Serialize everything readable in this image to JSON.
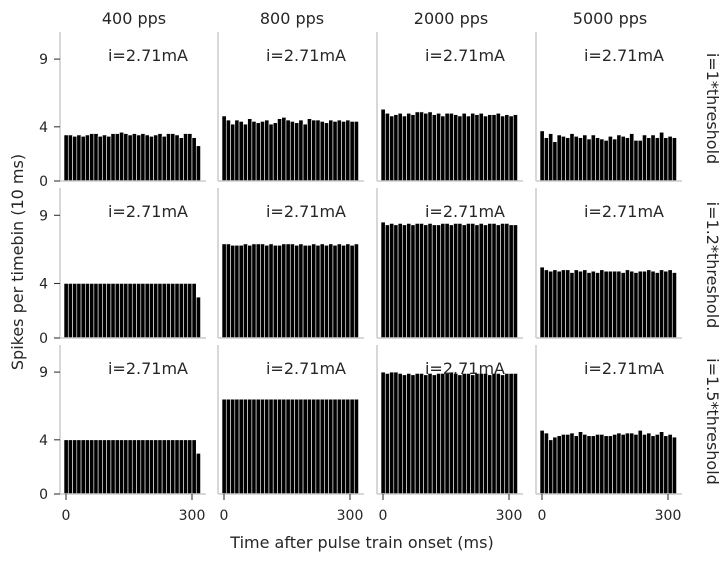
{
  "chart_data": {
    "type": "bar",
    "layout": "3x4 small-multiples grid",
    "xlabel": "Time after pulse train onset (ms)",
    "ylabel": "Spikes per timebin (10 ms)",
    "column_titles": [
      "400 pps",
      "800 pps",
      "2000 pps",
      "5000 pps"
    ],
    "row_titles": [
      "i=1*threshold",
      "i=1.2*threshold",
      "i=1.5*threshold"
    ],
    "annotation": "i=2.71mA",
    "xlim": [
      0,
      300
    ],
    "ylim": [
      0,
      11
    ],
    "xticks": [
      "0",
      "300"
    ],
    "yticks": [
      "0",
      "4",
      "9"
    ],
    "bin_width_ms": 10,
    "bar_color": "#000000",
    "grid": false,
    "panels": [
      [
        {
          "values": [
            3.4,
            3.4,
            3.3,
            3.4,
            3.3,
            3.4,
            3.5,
            3.5,
            3.3,
            3.4,
            3.3,
            3.5,
            3.5,
            3.6,
            3.5,
            3.4,
            3.5,
            3.4,
            3.5,
            3.4,
            3.3,
            3.4,
            3.5,
            3.3,
            3.5,
            3.5,
            3.4,
            3.2,
            3.5,
            3.5,
            3.2,
            2.6
          ]
        },
        {
          "values": [
            4.8,
            4.5,
            4.2,
            4.5,
            4.4,
            4.2,
            4.6,
            4.4,
            4.3,
            4.4,
            4.5,
            4.2,
            4.3,
            4.6,
            4.7,
            4.5,
            4.4,
            4.3,
            4.5,
            4.2,
            4.6,
            4.5,
            4.5,
            4.4,
            4.3,
            4.5,
            4.4,
            4.5,
            4.4,
            4.5,
            4.4,
            4.4
          ]
        },
        {
          "values": [
            5.3,
            5.0,
            4.8,
            4.9,
            5.0,
            4.8,
            5.0,
            4.9,
            5.1,
            5.1,
            5.0,
            5.1,
            4.9,
            5.0,
            4.8,
            5.0,
            5.0,
            4.9,
            4.8,
            5.0,
            4.8,
            5.0,
            4.9,
            5.0,
            4.8,
            4.9,
            4.9,
            5.0,
            4.8,
            4.9,
            4.8,
            4.9
          ]
        },
        {
          "values": [
            3.7,
            3.2,
            3.5,
            2.9,
            3.4,
            3.3,
            3.2,
            3.5,
            3.3,
            3.2,
            3.4,
            3.1,
            3.4,
            3.2,
            3.1,
            3.0,
            3.3,
            3.1,
            3.4,
            3.3,
            3.2,
            3.5,
            3.0,
            3.0,
            3.4,
            3.2,
            3.4,
            3.2,
            3.6,
            3.2,
            3.3,
            3.2
          ]
        }
      ],
      [
        {
          "values": [
            4.0,
            4.0,
            4.0,
            4.0,
            4.0,
            4.0,
            4.0,
            4.0,
            4.0,
            4.0,
            4.0,
            4.0,
            4.0,
            4.0,
            4.0,
            4.0,
            4.0,
            4.0,
            4.0,
            4.0,
            4.0,
            4.0,
            4.0,
            4.0,
            4.0,
            4.0,
            4.0,
            4.0,
            4.0,
            4.0,
            4.0,
            3.0
          ]
        },
        {
          "values": [
            6.9,
            6.9,
            6.8,
            6.8,
            6.8,
            6.9,
            6.8,
            6.9,
            6.9,
            6.9,
            6.8,
            6.9,
            6.8,
            6.8,
            6.9,
            6.9,
            6.9,
            6.8,
            6.9,
            6.8,
            6.8,
            6.9,
            6.8,
            6.9,
            6.8,
            6.9,
            6.8,
            6.9,
            6.8,
            6.9,
            6.8,
            6.9
          ]
        },
        {
          "values": [
            8.5,
            8.3,
            8.4,
            8.3,
            8.4,
            8.3,
            8.4,
            8.3,
            8.4,
            8.4,
            8.3,
            8.4,
            8.3,
            8.3,
            8.4,
            8.4,
            8.3,
            8.4,
            8.4,
            8.3,
            8.4,
            8.4,
            8.3,
            8.4,
            8.3,
            8.4,
            8.4,
            8.3,
            8.4,
            8.4,
            8.3,
            8.3
          ]
        },
        {
          "values": [
            5.2,
            5.0,
            4.9,
            5.0,
            4.9,
            5.0,
            5.0,
            4.8,
            5.0,
            4.9,
            5.0,
            4.8,
            4.9,
            4.8,
            5.0,
            4.9,
            4.9,
            4.9,
            4.9,
            4.8,
            5.0,
            4.9,
            4.8,
            4.9,
            4.9,
            5.0,
            4.9,
            4.8,
            5.0,
            4.9,
            5.0,
            4.8
          ]
        }
      ],
      [
        {
          "values": [
            4.0,
            4.0,
            4.0,
            4.0,
            4.0,
            4.0,
            4.0,
            4.0,
            4.0,
            4.0,
            4.0,
            4.0,
            4.0,
            4.0,
            4.0,
            4.0,
            4.0,
            4.0,
            4.0,
            4.0,
            4.0,
            4.0,
            4.0,
            4.0,
            4.0,
            4.0,
            4.0,
            4.0,
            4.0,
            4.0,
            4.0,
            3.0
          ]
        },
        {
          "values": [
            7.0,
            7.0,
            7.0,
            7.0,
            7.0,
            7.0,
            7.0,
            7.0,
            7.0,
            7.0,
            7.0,
            7.0,
            7.0,
            7.0,
            7.0,
            7.0,
            7.0,
            7.0,
            7.0,
            7.0,
            7.0,
            7.0,
            7.0,
            7.0,
            7.0,
            7.0,
            7.0,
            7.0,
            7.0,
            7.0,
            7.0,
            7.0
          ]
        },
        {
          "values": [
            9.0,
            8.9,
            9.0,
            9.0,
            8.9,
            8.8,
            8.9,
            8.8,
            8.9,
            8.9,
            8.8,
            8.9,
            8.8,
            8.9,
            8.9,
            8.9,
            9.0,
            8.9,
            8.8,
            8.9,
            8.9,
            8.8,
            8.9,
            8.9,
            8.9,
            8.8,
            8.9,
            8.9,
            8.8,
            8.9,
            8.9,
            8.9
          ]
        },
        {
          "values": [
            4.7,
            4.5,
            4.0,
            4.2,
            4.3,
            4.4,
            4.4,
            4.5,
            4.3,
            4.6,
            4.4,
            4.3,
            4.3,
            4.4,
            4.4,
            4.3,
            4.3,
            4.4,
            4.5,
            4.4,
            4.5,
            4.5,
            4.4,
            4.7,
            4.4,
            4.5,
            4.3,
            4.4,
            4.6,
            4.3,
            4.4,
            4.2
          ]
        }
      ]
    ]
  }
}
